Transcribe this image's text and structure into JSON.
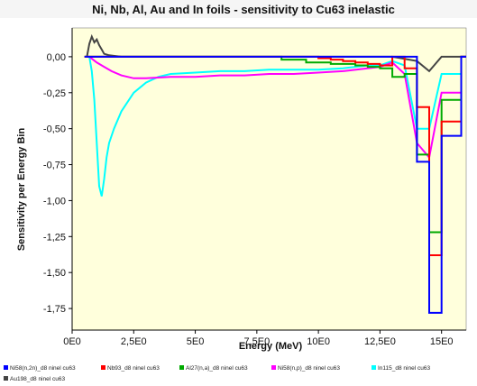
{
  "chart_data": {
    "type": "line",
    "title": "Ni, Nb, Al, Au and In foils -  sensitivity to Cu63 inelastic",
    "xlabel": "Energy (MeV)",
    "ylabel": "Sensitivity per Energy Bin",
    "xlim": [
      0,
      16
    ],
    "ylim": [
      -1.9,
      0.2
    ],
    "x_ticks": [
      0,
      2.5,
      5,
      7.5,
      10,
      12.5,
      15
    ],
    "x_tick_labels": [
      "0E0",
      "2,5E0",
      "5E0",
      "7,5E0",
      "10E0",
      "12,5E0",
      "15E0"
    ],
    "y_ticks": [
      0,
      -0.25,
      -0.5,
      -0.75,
      -1.0,
      -1.25,
      -1.5,
      -1.75
    ],
    "y_tick_labels": [
      "0,00",
      "-0,25",
      "-0,50",
      "-0,75",
      "-1,00",
      "-1,25",
      "-1,50",
      "-1,75"
    ],
    "grid": false,
    "legend_position": "bottom",
    "colors": {
      "background": "#ffffdc",
      "plot_border": "#808080",
      "axis": "#000000",
      "title_bar": "#f5f5f5"
    },
    "series": [
      {
        "name": "Ni58(n,2n)_d8 ninel cu63",
        "color": "#0000ff",
        "step": true,
        "points": [
          [
            0.5,
            0
          ],
          [
            14.0,
            0
          ],
          [
            14.0,
            -0.73
          ],
          [
            14.5,
            -0.73
          ],
          [
            14.5,
            -1.78
          ],
          [
            15.0,
            -1.78
          ],
          [
            15.0,
            -0.55
          ],
          [
            15.8,
            -0.55
          ],
          [
            15.8,
            0
          ],
          [
            16,
            0
          ]
        ]
      },
      {
        "name": "Nb93_d8 ninel cu63",
        "color": "#ff0000",
        "step": true,
        "points": [
          [
            0.5,
            0
          ],
          [
            9.5,
            0
          ],
          [
            10.0,
            -0.01
          ],
          [
            10.5,
            -0.02
          ],
          [
            11.0,
            -0.03
          ],
          [
            11.5,
            -0.04
          ],
          [
            12.0,
            -0.05
          ],
          [
            12.5,
            -0.06
          ],
          [
            13.0,
            0.0
          ],
          [
            13.5,
            -0.08
          ],
          [
            14.0,
            -0.35
          ],
          [
            14.5,
            -1.38
          ],
          [
            15.0,
            -0.45
          ],
          [
            15.8,
            -0.45
          ],
          [
            15.8,
            0
          ],
          [
            16,
            0
          ]
        ]
      },
      {
        "name": "Al27(n,a)_d8 ninel cu63",
        "color": "#00aa00",
        "step": true,
        "points": [
          [
            0.5,
            0
          ],
          [
            7.8,
            0
          ],
          [
            8.5,
            -0.02
          ],
          [
            9.5,
            -0.04
          ],
          [
            10.5,
            -0.05
          ],
          [
            11.5,
            -0.06
          ],
          [
            12.0,
            -0.07
          ],
          [
            12.5,
            -0.08
          ],
          [
            13.0,
            -0.14
          ],
          [
            13.5,
            -0.12
          ],
          [
            14.0,
            -0.68
          ],
          [
            14.5,
            -1.22
          ],
          [
            15.0,
            -0.3
          ],
          [
            15.8,
            -0.3
          ],
          [
            15.8,
            0
          ],
          [
            16,
            0
          ]
        ]
      },
      {
        "name": "Ni58(n,p)_d8 ninel cu63",
        "color": "#ff00ff",
        "step": false,
        "points": [
          [
            0.7,
            0
          ],
          [
            1.0,
            -0.04
          ],
          [
            1.3,
            -0.07
          ],
          [
            1.6,
            -0.1
          ],
          [
            2.0,
            -0.13
          ],
          [
            2.5,
            -0.15
          ],
          [
            3.0,
            -0.15
          ],
          [
            4.0,
            -0.14
          ],
          [
            5.0,
            -0.14
          ],
          [
            6.0,
            -0.13
          ],
          [
            7.0,
            -0.13
          ],
          [
            8.0,
            -0.12
          ],
          [
            9.0,
            -0.12
          ],
          [
            10.0,
            -0.11
          ],
          [
            11.0,
            -0.1
          ],
          [
            12.0,
            -0.08
          ],
          [
            12.5,
            -0.07
          ],
          [
            13.0,
            -0.04
          ],
          [
            13.5,
            -0.12
          ],
          [
            14.0,
            -0.6
          ],
          [
            14.5,
            -0.7
          ],
          [
            15.0,
            -0.25
          ],
          [
            15.8,
            -0.25
          ],
          [
            15.8,
            0
          ],
          [
            16,
            0
          ]
        ]
      },
      {
        "name": "In115_d8 ninel cu63",
        "color": "#00ffff",
        "step": false,
        "points": [
          [
            0.7,
            0
          ],
          [
            0.8,
            -0.1
          ],
          [
            0.9,
            -0.3
          ],
          [
            1.0,
            -0.6
          ],
          [
            1.1,
            -0.9
          ],
          [
            1.2,
            -0.97
          ],
          [
            1.3,
            -0.85
          ],
          [
            1.4,
            -0.7
          ],
          [
            1.5,
            -0.6
          ],
          [
            1.7,
            -0.5
          ],
          [
            2.0,
            -0.38
          ],
          [
            2.5,
            -0.25
          ],
          [
            3.0,
            -0.18
          ],
          [
            3.5,
            -0.14
          ],
          [
            4.0,
            -0.12
          ],
          [
            5.0,
            -0.11
          ],
          [
            6.0,
            -0.1
          ],
          [
            7.0,
            -0.1
          ],
          [
            8.0,
            -0.09
          ],
          [
            9.0,
            -0.09
          ],
          [
            10.0,
            -0.09
          ],
          [
            11.0,
            -0.08
          ],
          [
            12.0,
            -0.06
          ],
          [
            12.5,
            -0.06
          ],
          [
            13.0,
            -0.03
          ],
          [
            13.5,
            -0.06
          ],
          [
            14.0,
            -0.5
          ],
          [
            14.5,
            -0.5
          ],
          [
            15.0,
            -0.12
          ],
          [
            15.8,
            -0.12
          ],
          [
            15.8,
            0
          ],
          [
            16,
            0
          ]
        ]
      },
      {
        "name": "Au198_d8 ninel cu63",
        "color": "#444444",
        "step": false,
        "points": [
          [
            0.6,
            0
          ],
          [
            0.7,
            0.09
          ],
          [
            0.8,
            0.14
          ],
          [
            0.9,
            0.1
          ],
          [
            1.0,
            0.12
          ],
          [
            1.1,
            0.08
          ],
          [
            1.2,
            0.05
          ],
          [
            1.3,
            0.02
          ],
          [
            1.5,
            0.01
          ],
          [
            2.0,
            0
          ],
          [
            13.0,
            0
          ],
          [
            14.0,
            -0.03
          ],
          [
            14.5,
            -0.1
          ],
          [
            15.0,
            0
          ],
          [
            16,
            0
          ]
        ]
      }
    ]
  }
}
